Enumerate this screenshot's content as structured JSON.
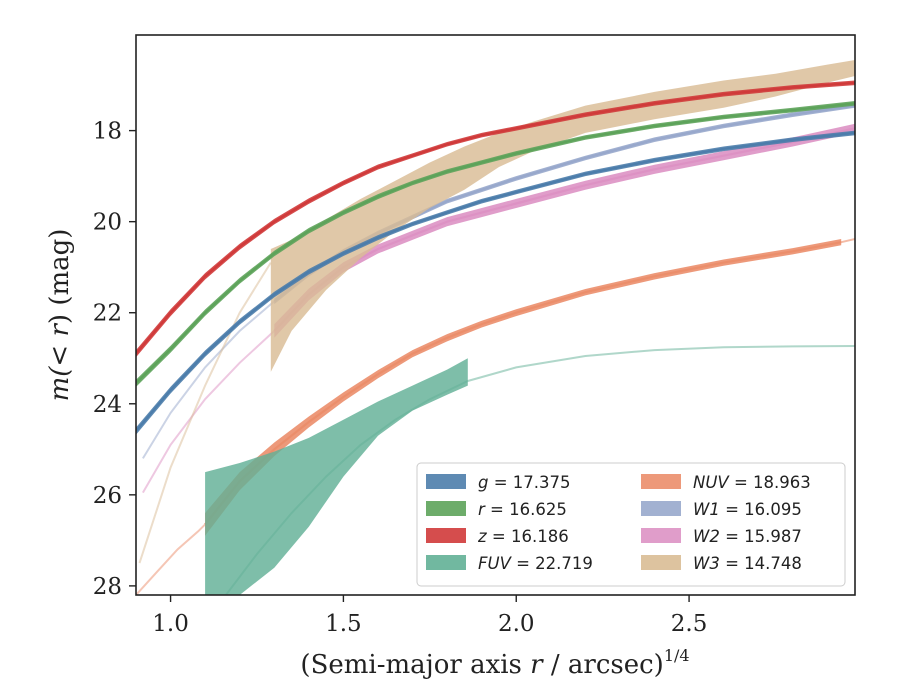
{
  "chart_data": {
    "type": "line",
    "xlabel": "(Semi-major axis r / arcsec)",
    "xlabel_parts": {
      "prefix": "(Semi-major axis ",
      "var": "r",
      "suffix": " / arcsec)",
      "exponent": "1/4"
    },
    "ylabel": "m(< r) (mag)",
    "ylabel_parts": {
      "prefix": "m(",
      "var": "< r",
      "suffix": ") (mag)"
    },
    "xlim": [
      0.9,
      2.98
    ],
    "ylim": [
      28.2,
      15.9
    ],
    "y_inverted": true,
    "xticks": [
      1.0,
      1.5,
      2.0,
      2.5
    ],
    "xtick_labels": [
      "1.0",
      "1.5",
      "2.0",
      "2.5"
    ],
    "yticks": [
      18,
      20,
      22,
      24,
      26,
      28
    ],
    "ytick_labels": [
      "18",
      "20",
      "22",
      "24",
      "26",
      "28"
    ],
    "grid": false,
    "legend_position": "lower-right",
    "legend_columns": 2,
    "series": [
      {
        "name": "g = 17.375",
        "label_var": "g",
        "label_value": "= 17.375",
        "color": "#4c7dab",
        "legend_col": 0,
        "x": [
          0.9,
          1.0,
          1.1,
          1.2,
          1.3,
          1.4,
          1.5,
          1.6,
          1.7,
          1.8,
          1.9,
          2.0,
          2.2,
          2.4,
          2.6,
          2.8,
          2.98
        ],
        "y": [
          24.6,
          23.7,
          22.9,
          22.2,
          21.6,
          21.1,
          20.7,
          20.35,
          20.05,
          19.8,
          19.55,
          19.35,
          18.95,
          18.65,
          18.4,
          18.2,
          18.05
        ],
        "width": [
          0.16,
          0.15,
          0.14,
          0.13,
          0.12,
          0.12,
          0.11,
          0.11,
          0.1,
          0.1,
          0.1,
          0.1,
          0.1,
          0.1,
          0.1,
          0.1,
          0.1
        ]
      },
      {
        "name": "r = 16.625",
        "label_var": "r",
        "label_value": "= 16.625",
        "color": "#5da35a",
        "legend_col": 0,
        "x": [
          0.9,
          1.0,
          1.1,
          1.2,
          1.3,
          1.4,
          1.5,
          1.6,
          1.7,
          1.8,
          1.9,
          2.0,
          2.2,
          2.4,
          2.6,
          2.8,
          2.98
        ],
        "y": [
          23.55,
          22.8,
          22.0,
          21.3,
          20.7,
          20.2,
          19.8,
          19.45,
          19.15,
          18.9,
          18.7,
          18.5,
          18.15,
          17.9,
          17.7,
          17.55,
          17.4
        ],
        "width": [
          0.16,
          0.15,
          0.14,
          0.13,
          0.12,
          0.12,
          0.11,
          0.11,
          0.1,
          0.1,
          0.1,
          0.1,
          0.1,
          0.1,
          0.1,
          0.1,
          0.1
        ]
      },
      {
        "name": "z = 16.186",
        "label_var": "z",
        "label_value": "= 16.186",
        "color": "#d03a3a",
        "legend_col": 0,
        "x": [
          0.9,
          1.0,
          1.1,
          1.2,
          1.3,
          1.4,
          1.5,
          1.6,
          1.7,
          1.8,
          1.9,
          2.0,
          2.2,
          2.4,
          2.6,
          2.8,
          2.98
        ],
        "y": [
          22.9,
          22.0,
          21.2,
          20.55,
          20.0,
          19.55,
          19.15,
          18.8,
          18.55,
          18.3,
          18.1,
          17.95,
          17.65,
          17.4,
          17.2,
          17.05,
          16.95
        ],
        "width": [
          0.16,
          0.15,
          0.14,
          0.13,
          0.12,
          0.12,
          0.11,
          0.11,
          0.1,
          0.1,
          0.1,
          0.1,
          0.1,
          0.1,
          0.1,
          0.1,
          0.1
        ]
      },
      {
        "name": "FUV = 22.719",
        "label_var": "FUV",
        "label_value": "= 22.719",
        "color": "#62b096",
        "legend_col": 0,
        "x": [
          1.1,
          1.2,
          1.3,
          1.4,
          1.5,
          1.6,
          1.7,
          1.8,
          1.86
        ],
        "y_upper": [
          25.5,
          25.3,
          25.05,
          24.75,
          24.35,
          23.95,
          23.6,
          23.25,
          23.0
        ],
        "y_lower": [
          28.2,
          28.2,
          27.6,
          26.7,
          25.6,
          24.7,
          24.15,
          23.8,
          23.6
        ],
        "faint_x": [
          1.16,
          1.25,
          1.35,
          1.45,
          1.55,
          1.65,
          1.75,
          1.86,
          2.0,
          2.2,
          2.4,
          2.6,
          2.8,
          2.98
        ],
        "faint_y": [
          28.2,
          27.3,
          26.4,
          25.6,
          24.9,
          24.35,
          23.9,
          23.5,
          23.2,
          22.95,
          22.82,
          22.76,
          22.74,
          22.73
        ]
      },
      {
        "name": "NUV = 18.963",
        "label_var": "NUV",
        "label_value": "= 18.963",
        "color": "#eb8e6b",
        "legend_col": 1,
        "x": [
          1.1,
          1.2,
          1.3,
          1.4,
          1.5,
          1.6,
          1.7,
          1.8,
          1.9,
          2.0,
          2.2,
          2.4,
          2.6,
          2.8,
          2.94
        ],
        "y": [
          26.65,
          25.7,
          25.0,
          24.4,
          23.85,
          23.35,
          22.9,
          22.55,
          22.25,
          22.0,
          21.55,
          21.2,
          20.9,
          20.65,
          20.45
        ],
        "width": [
          0.5,
          0.4,
          0.3,
          0.24,
          0.2,
          0.18,
          0.16,
          0.16,
          0.15,
          0.15,
          0.14,
          0.14,
          0.14,
          0.14,
          0.14
        ],
        "faint_x": [
          0.9,
          0.96,
          1.02,
          1.08,
          1.1
        ],
        "faint_y": [
          28.2,
          27.7,
          27.2,
          26.8,
          26.65
        ],
        "tail_x": [
          2.94,
          2.98
        ],
        "tail_y": [
          20.45,
          20.38
        ]
      },
      {
        "name": "W1 = 16.095",
        "label_var": "W1",
        "label_value": "= 16.095",
        "color": "#98a8cc",
        "legend_col": 1,
        "x": [
          1.3,
          1.4,
          1.5,
          1.6,
          1.7,
          1.8,
          1.9,
          2.0,
          2.2,
          2.4,
          2.6,
          2.8,
          2.98
        ],
        "y": [
          21.75,
          21.15,
          20.65,
          20.25,
          19.9,
          19.55,
          19.3,
          19.05,
          18.6,
          18.2,
          17.9,
          17.65,
          17.45
        ],
        "width": [
          0.12,
          0.11,
          0.1,
          0.1,
          0.1,
          0.1,
          0.1,
          0.1,
          0.1,
          0.1,
          0.1,
          0.1,
          0.1
        ],
        "faint_x": [
          0.92,
          1.0,
          1.1,
          1.2,
          1.3
        ],
        "faint_y": [
          25.2,
          24.2,
          23.2,
          22.4,
          21.75
        ]
      },
      {
        "name": "W2 = 15.987",
        "label_var": "W2",
        "label_value": "= 15.987",
        "color": "#dd92c4",
        "legend_col": 1,
        "x": [
          1.3,
          1.4,
          1.5,
          1.6,
          1.7,
          1.8,
          1.9,
          2.0,
          2.2,
          2.4,
          2.6,
          2.8,
          2.98
        ],
        "y": [
          22.4,
          21.6,
          21.0,
          20.6,
          20.3,
          20.0,
          19.8,
          19.6,
          19.2,
          18.85,
          18.55,
          18.25,
          17.95
        ],
        "width": [
          0.3,
          0.26,
          0.22,
          0.2,
          0.2,
          0.2,
          0.2,
          0.2,
          0.2,
          0.2,
          0.2,
          0.2,
          0.2
        ],
        "faint_x": [
          0.92,
          1.0,
          1.1,
          1.2,
          1.3
        ],
        "faint_y": [
          25.95,
          24.9,
          23.9,
          23.1,
          22.4
        ]
      },
      {
        "name": "W3 = 14.748",
        "label_var": "W3",
        "label_value": "= 14.748",
        "color": "#d9bc95",
        "legend_col": 1,
        "x": [
          1.29,
          1.35,
          1.45,
          1.55,
          1.65,
          1.75,
          1.85,
          1.95,
          2.05,
          2.2,
          2.4,
          2.6,
          2.75,
          2.9,
          2.98
        ],
        "y_upper": [
          20.6,
          20.4,
          19.95,
          19.5,
          19.1,
          18.7,
          18.35,
          18.05,
          17.8,
          17.45,
          17.15,
          16.9,
          16.75,
          16.55,
          16.45
        ],
        "y_lower": [
          23.3,
          22.4,
          21.5,
          20.8,
          20.2,
          19.7,
          19.3,
          18.8,
          18.45,
          18.05,
          17.75,
          17.5,
          17.25,
          16.95,
          16.8
        ],
        "faint_x": [
          0.91,
          1.0,
          1.1,
          1.2,
          1.29
        ],
        "faint_y": [
          27.5,
          25.4,
          23.6,
          22.0,
          20.9
        ]
      }
    ]
  }
}
